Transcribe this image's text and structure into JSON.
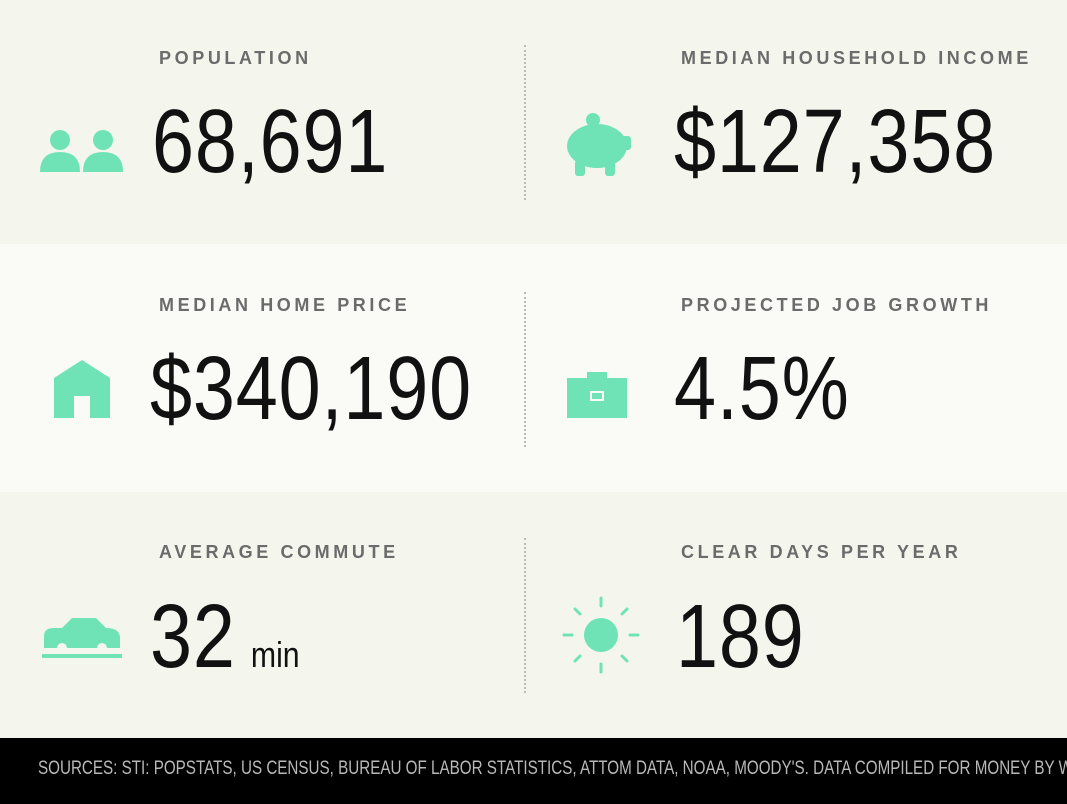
{
  "stats": [
    {
      "label": "POPULATION",
      "value": "68,691"
    },
    {
      "label": "MEDIAN HOUSEHOLD INCOME",
      "value": "$127,358"
    },
    {
      "label": "MEDIAN HOME PRICE",
      "value": "$340,190"
    },
    {
      "label": "PROJECTED JOB GROWTH",
      "value": "4.5%"
    },
    {
      "label": "AVERAGE COMMUTE",
      "value": "32",
      "unit": "min"
    },
    {
      "label": "CLEAR DAYS PER YEAR",
      "value": "189"
    }
  ],
  "footer": "SOURCES: STI: POPSTATS, US CENSUS, BUREAU OF LABOR STATISTICS, ATTOM DATA, NOAA, MOODY'S. DATA COMPILED FOR MONEY BY WITLYTIC."
}
